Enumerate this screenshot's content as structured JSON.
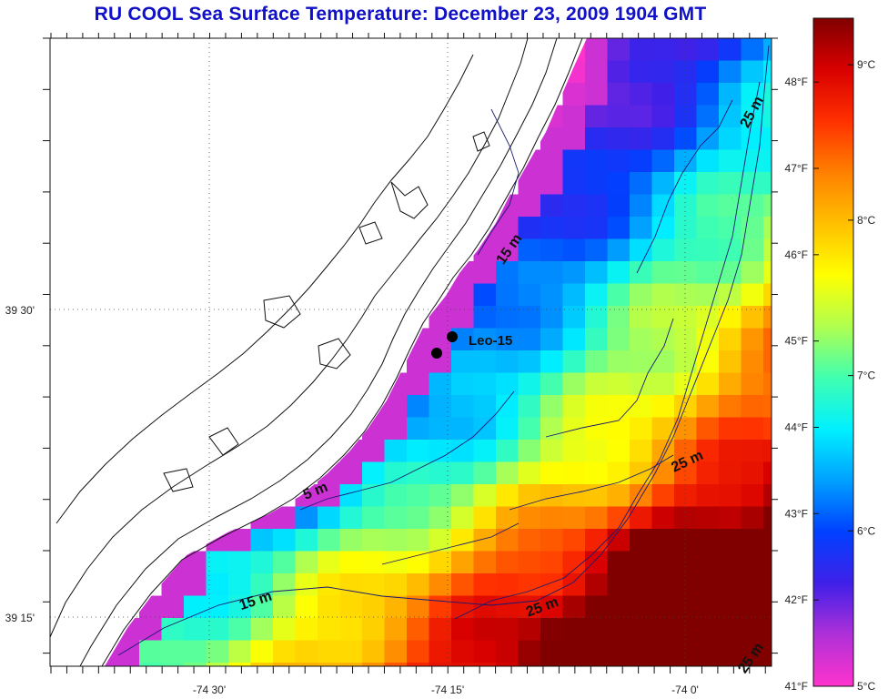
{
  "title": "RU COOL  Sea Surface Temperature:  December 23, 2009 1904 GMT",
  "map": {
    "lon_range": [
      -74.65,
      -74.0
    ],
    "lat_range": [
      39.15,
      39.75
    ],
    "x_tick_labels": [
      "-74 30'",
      "-74 15'",
      "-74 0'"
    ],
    "y_tick_labels": [
      "39 30'",
      "39 15'"
    ],
    "grid": "dotted",
    "stations": [
      {
        "name": "Leo-15",
        "label": "Leo-15"
      }
    ],
    "depth_contour_labels": [
      "15 m",
      "5 m",
      "15 m",
      "25 m",
      "25 m",
      "25 m",
      "25 m"
    ]
  },
  "colorbar": {
    "min_c": 5,
    "max_c": 9.3,
    "fahrenheit_labels": [
      "48°F",
      "47°F",
      "46°F",
      "45°F",
      "44°F",
      "43°F",
      "42°F",
      "41°F"
    ],
    "celsius_labels": [
      "9°C",
      "8°C",
      "7°C",
      "6°C",
      "5°C"
    ],
    "stops": [
      "#ff33cc",
      "#b030d8",
      "#4020e8",
      "#0040ff",
      "#00a0ff",
      "#00f0ff",
      "#40ffb0",
      "#b0ff50",
      "#ffff00",
      "#ffc000",
      "#ff8000",
      "#ff3000",
      "#d80000",
      "#800000"
    ]
  }
}
